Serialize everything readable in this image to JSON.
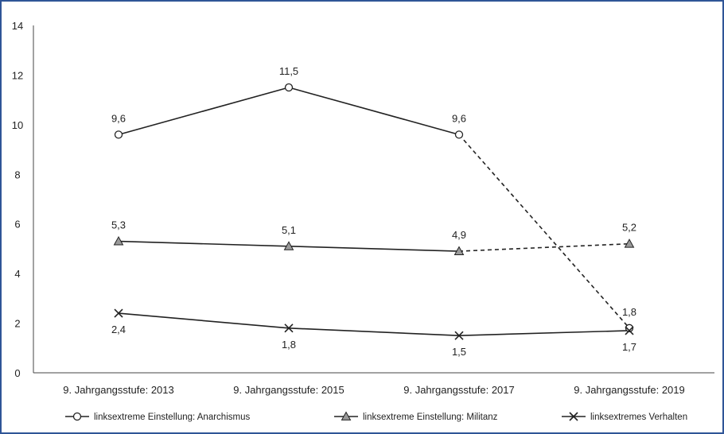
{
  "chart_data": {
    "type": "line",
    "categories": [
      "9. Jahrgangsstufe: 2013",
      "9. Jahrgangsstufe: 2015",
      "9. Jahrgangsstufe: 2017",
      "9. Jahrgangsstufe: 2019"
    ],
    "ylim": [
      0,
      14
    ],
    "yticks": [
      "0",
      "2",
      "4",
      "6",
      "8",
      "10",
      "12",
      "14"
    ],
    "grid": false,
    "legend_position": "bottom",
    "series": [
      {
        "name": "linksextreme Einstellung: Anarchismus",
        "marker": "circle",
        "values": [
          9.6,
          11.5,
          9.6,
          1.8
        ],
        "labels": [
          "9,6",
          "11,5",
          "9,6",
          "1,8"
        ],
        "dashed_last_segment": true
      },
      {
        "name": "linksextreme Einstellung: Militanz",
        "marker": "triangle",
        "values": [
          5.3,
          5.1,
          4.9,
          5.2
        ],
        "labels": [
          "5,3",
          "5,1",
          "4,9",
          "5,2"
        ],
        "dashed_last_segment": true
      },
      {
        "name": "linksextremes Verhalten",
        "marker": "x",
        "values": [
          2.4,
          1.8,
          1.5,
          1.7
        ],
        "labels": [
          "2,4",
          "1,8",
          "1,5",
          "1,7"
        ],
        "dashed_last_segment": false
      }
    ]
  }
}
